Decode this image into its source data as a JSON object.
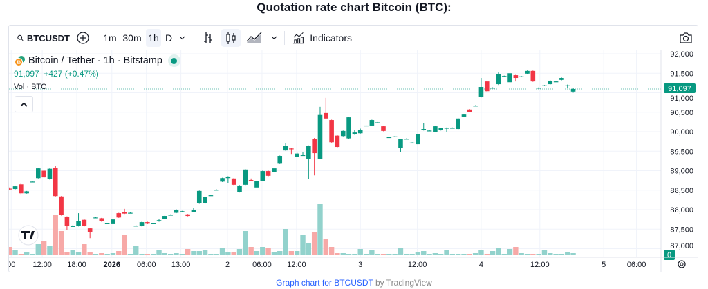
{
  "page_title": "Quotation rate chart Bitcoin (BTC):",
  "toolbar": {
    "symbol": "BTCUSDT",
    "intervals": [
      "1m",
      "30m",
      "1h",
      "D"
    ],
    "active_interval": "1h",
    "indicators_label": "Indicators",
    "icons": [
      "search-icon",
      "add-compare-icon",
      "chevron-down-icon",
      "bar-chart-icon",
      "candlestick-icon",
      "area-chart-icon",
      "chevron-down-icon",
      "indicators-icon",
      "camera-icon"
    ]
  },
  "legend": {
    "title": "Bitcoin / Tether · 1h · Bitstamp",
    "price": "91,097",
    "change": "+427 (+0.47%)",
    "volume_label": "Vol · BTC"
  },
  "footer": {
    "link": "Graph chart for BTCUSDT",
    "by": "by TradingView"
  },
  "colors": {
    "up": "#089981",
    "down": "#f23645",
    "vol_up": "#92d2cc",
    "vol_down": "#f7a9a7"
  },
  "chart_data": {
    "type": "candlestick",
    "title": "",
    "ylim": [
      86950,
      92150
    ],
    "y_ticks": [
      "92,000",
      "91,500",
      "91,000",
      "90,500",
      "90,000",
      "89,500",
      "89,000",
      "88,500",
      "88,000",
      "87,500",
      "87,000"
    ],
    "x_ticks": [
      "00",
      "12:00",
      "18:00",
      "2026",
      "06:00",
      "13:00",
      "2",
      "06:00",
      "12:00",
      "3",
      "12:00",
      "4",
      "12:00",
      "5",
      "06:00"
    ],
    "last_price_label": "91,097",
    "volume_axis_label": "0",
    "grid": true,
    "ohlcv_fields": [
      "open",
      "high",
      "low",
      "close",
      "volume"
    ],
    "candles": [
      [
        88540,
        88570,
        88500,
        88520,
        11
      ],
      [
        88530,
        88620,
        88520,
        88600,
        7
      ],
      [
        88650,
        88680,
        88400,
        88420,
        1
      ],
      [
        88420,
        88480,
        88410,
        88470,
        3
      ],
      [
        88710,
        88730,
        88700,
        88720,
        1
      ],
      [
        88810,
        89070,
        88800,
        89060,
        15
      ],
      [
        89000,
        89010,
        88820,
        88830,
        20
      ],
      [
        88780,
        89060,
        88770,
        89050,
        13
      ],
      [
        89080,
        89120,
        88340,
        88350,
        57
      ],
      [
        88340,
        88350,
        87850,
        87860,
        34
      ],
      [
        87820,
        87830,
        87470,
        87590,
        3
      ],
      [
        87580,
        87600,
        87560,
        87580,
        6
      ],
      [
        87590,
        87910,
        87570,
        87700,
        3
      ],
      [
        87740,
        87760,
        87570,
        87580,
        15
      ],
      [
        87520,
        87530,
        87270,
        87430,
        3
      ],
      [
        87800,
        87810,
        87790,
        87800,
        1
      ],
      [
        87780,
        87790,
        87690,
        87700,
        2
      ],
      [
        87650,
        87660,
        87640,
        87650,
        1
      ],
      [
        87630,
        87760,
        87620,
        87750,
        2
      ],
      [
        87910,
        87920,
        87790,
        87800,
        5
      ],
      [
        87930,
        88020,
        87890,
        87900,
        28
      ],
      [
        87920,
        87930,
        87910,
        87920,
        1
      ],
      [
        87590,
        87600,
        87570,
        87590,
        12
      ],
      [
        87580,
        87690,
        87570,
        87680,
        1
      ],
      [
        87680,
        87690,
        87630,
        87640,
        1
      ],
      [
        87650,
        87660,
        87640,
        87650,
        1
      ],
      [
        87700,
        87760,
        87690,
        87730,
        6
      ],
      [
        87770,
        87850,
        87760,
        87840,
        2
      ],
      [
        87870,
        87880,
        87860,
        87870,
        1
      ],
      [
        87920,
        88010,
        87910,
        88000,
        2
      ],
      [
        87960,
        87970,
        87950,
        87960,
        1
      ],
      [
        87880,
        87890,
        87830,
        87840,
        8
      ],
      [
        87940,
        88040,
        87930,
        88000,
        5
      ],
      [
        88160,
        88490,
        88150,
        88480,
        5
      ],
      [
        88160,
        88330,
        88150,
        88320,
        6
      ],
      [
        88370,
        88380,
        88360,
        88370,
        1
      ],
      [
        88510,
        88520,
        88500,
        88510,
        1
      ],
      [
        88720,
        88820,
        88710,
        88810,
        10
      ],
      [
        88810,
        88860,
        88680,
        88850,
        4
      ],
      [
        88800,
        88810,
        88630,
        88640,
        4
      ],
      [
        88460,
        88630,
        88440,
        88620,
        8
      ],
      [
        88640,
        89040,
        88630,
        89030,
        34
      ],
      [
        88760,
        88800,
        88740,
        88750,
        11
      ],
      [
        88570,
        88750,
        88560,
        88740,
        5
      ],
      [
        88740,
        89000,
        88730,
        88990,
        11
      ],
      [
        88990,
        89000,
        88860,
        88870,
        10
      ],
      [
        88970,
        89070,
        88960,
        89060,
        3
      ],
      [
        89180,
        89390,
        89170,
        89380,
        5
      ],
      [
        89520,
        89710,
        89510,
        89640,
        37
      ],
      [
        89570,
        89580,
        89430,
        89560,
        5
      ],
      [
        89360,
        89460,
        89350,
        89440,
        5
      ],
      [
        89400,
        89480,
        89390,
        89400,
        29
      ],
      [
        89310,
        89650,
        88780,
        89630,
        17
      ],
      [
        89820,
        89840,
        88880,
        89450,
        32
      ],
      [
        89310,
        90640,
        89300,
        90430,
        73
      ],
      [
        90480,
        90870,
        90330,
        90340,
        23
      ],
      [
        90300,
        90310,
        89720,
        89730,
        11
      ],
      [
        89900,
        89910,
        89600,
        89610,
        2
      ],
      [
        89890,
        90030,
        89880,
        90020,
        2
      ],
      [
        89830,
        90380,
        89820,
        90370,
        1
      ],
      [
        89930,
        90040,
        89920,
        89980,
        1
      ],
      [
        89960,
        90080,
        89950,
        90050,
        8
      ],
      [
        90160,
        90170,
        90150,
        90160,
        1
      ],
      [
        90160,
        90310,
        90150,
        90300,
        7
      ],
      [
        90240,
        90250,
        90230,
        90240,
        1
      ],
      [
        90140,
        90150,
        90010,
        90020,
        1
      ],
      [
        89860,
        89870,
        89850,
        89860,
        1
      ],
      [
        89880,
        89890,
        89870,
        89880,
        1
      ],
      [
        89590,
        89820,
        89470,
        89810,
        9
      ],
      [
        89820,
        89830,
        89810,
        89820,
        1
      ],
      [
        89720,
        89730,
        89710,
        89720,
        1
      ],
      [
        89680,
        89940,
        89670,
        89930,
        3
      ],
      [
        90040,
        90230,
        90030,
        90070,
        5
      ],
      [
        90030,
        90040,
        90020,
        90030,
        1
      ],
      [
        90000,
        90150,
        89990,
        90140,
        2
      ],
      [
        90040,
        90100,
        90030,
        90090,
        1
      ],
      [
        90100,
        90110,
        90000,
        90100,
        6
      ],
      [
        90100,
        90110,
        90090,
        90100,
        1
      ],
      [
        90070,
        90350,
        90060,
        90340,
        1
      ],
      [
        90390,
        90450,
        90380,
        90440,
        1
      ],
      [
        90570,
        90580,
        90500,
        90510,
        1
      ],
      [
        90670,
        90680,
        90660,
        90670,
        2
      ],
      [
        90890,
        91380,
        90880,
        91150,
        6
      ],
      [
        91290,
        91300,
        91030,
        91040,
        1
      ],
      [
        91130,
        91140,
        91120,
        91130,
        5
      ],
      [
        91220,
        91520,
        91200,
        91470,
        9
      ],
      [
        91430,
        91440,
        91420,
        91430,
        1
      ],
      [
        91270,
        91510,
        91260,
        91500,
        8
      ],
      [
        91450,
        91460,
        91290,
        91380,
        11
      ],
      [
        91420,
        91430,
        91410,
        91420,
        2
      ],
      [
        91490,
        91570,
        91480,
        91560,
        1
      ],
      [
        91560,
        91570,
        91280,
        91290,
        1
      ],
      [
        91130,
        91140,
        91120,
        91130,
        1
      ],
      [
        91190,
        91200,
        91180,
        91190,
        6
      ],
      [
        91220,
        91320,
        91210,
        91310,
        2
      ],
      [
        91290,
        91300,
        91280,
        91290,
        1
      ],
      [
        91330,
        91390,
        91320,
        91380,
        1
      ],
      [
        91190,
        91210,
        91130,
        91190,
        4
      ],
      [
        91030,
        91120,
        91000,
        91097,
        2
      ]
    ]
  }
}
